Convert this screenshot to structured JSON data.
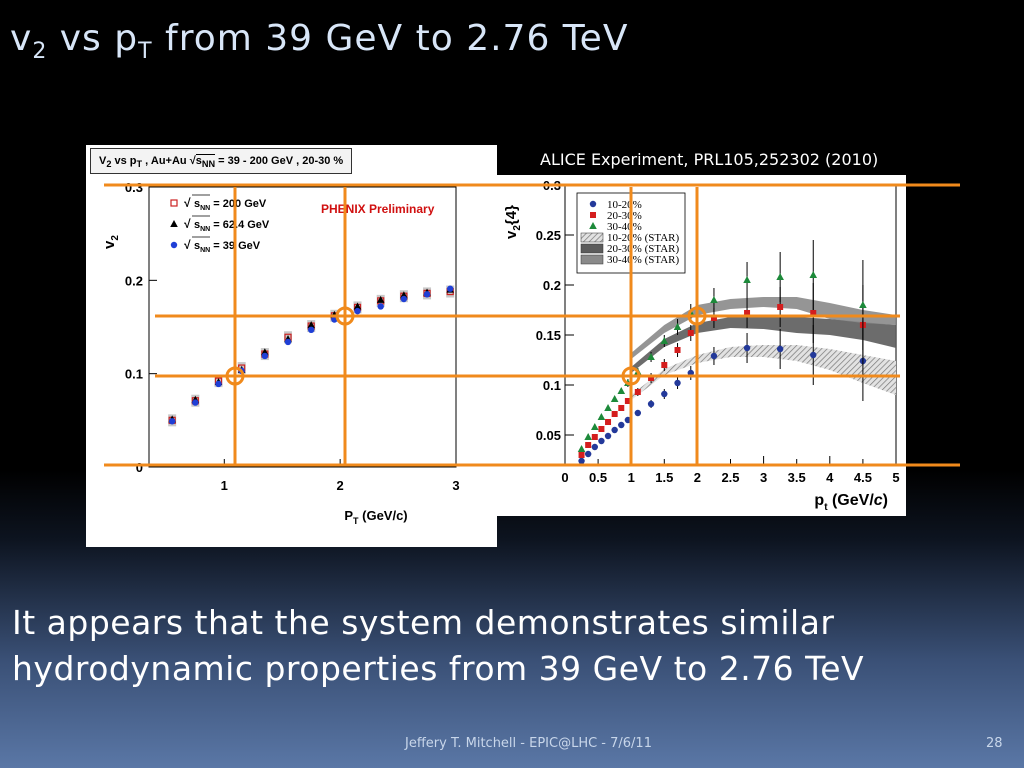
{
  "slide": {
    "title_v": "v",
    "title_v_sub": "2",
    "title_mid": " vs p",
    "title_p_sub": "T",
    "title_rest": " from 39 GeV to 2.76 TeV",
    "citation": "ALICE Experiment, PRL105,252302 (2010)",
    "body": "It appears that the system demonstrates similar hydrodynamic properties from 39 GeV to 2.76 TeV",
    "footer": "Jeffery T. Mitchell - EPIC@LHC  - 7/6/11",
    "page_number": "28"
  },
  "colors": {
    "guide_lines": "#f08a1c",
    "phenix_200": "#cc2222",
    "phenix_62": "#000000",
    "phenix_39": "#1f3fd6",
    "alice_10_20": "#23399a",
    "alice_20_30": "#d41e1e",
    "alice_30_40": "#1d8a3a",
    "phenix_label": "#d01010"
  },
  "chart_data": [
    {
      "type": "scatter",
      "title": "V2 vs pT , Au+Au √sNN = 39 - 200 GeV , 20-30 %",
      "title_parts": {
        "a": "V",
        "a_sub": "2",
        "b": " vs p",
        "b_sub": "T",
        "c": " , Au+Au ",
        "sqrt": "s",
        "sqrt_sub": "NN",
        "d": " = 39 - 200 GeV , 20-30 %"
      },
      "annotation": "PHENIX Preliminary",
      "xlabel": "P",
      "xlabel_sub": "T",
      "xlabel_unit": " (GeV/c)",
      "ylabel": "v",
      "ylabel_sub": "2",
      "xlim": [
        0.35,
        3.0
      ],
      "ylim": [
        0,
        0.3
      ],
      "xticks": [
        1,
        2,
        3
      ],
      "yticks": [
        0,
        0.1,
        0.2,
        0.3
      ],
      "ytick_labels": [
        "0",
        "0.1",
        "0.2",
        "0.3"
      ],
      "legend_position": "top-left",
      "series": [
        {
          "name": "√sNN = 200 GeV",
          "legend_prefix": "s",
          "legend_sub": "NN",
          "legend_suffix": " = 200 GeV",
          "marker": "open-square",
          "x": [
            0.55,
            0.75,
            0.95,
            1.15,
            1.35,
            1.55,
            1.75,
            1.95,
            2.15,
            2.35,
            2.55,
            2.75,
            2.95
          ],
          "y": [
            0.05,
            0.071,
            0.092,
            0.106,
            0.121,
            0.139,
            0.151,
            0.162,
            0.171,
            0.178,
            0.183,
            0.186,
            0.188
          ]
        },
        {
          "name": "√sNN = 62.4 GeV",
          "legend_prefix": "s",
          "legend_sub": "NN",
          "legend_suffix": " = 62.4  GeV",
          "marker": "triangle",
          "x": [
            0.55,
            0.75,
            0.95,
            1.15,
            1.35,
            1.55,
            1.75,
            1.95,
            2.15,
            2.35,
            2.55,
            2.75,
            2.95
          ],
          "y": [
            0.051,
            0.072,
            0.091,
            0.104,
            0.123,
            0.137,
            0.152,
            0.163,
            0.172,
            0.179,
            0.184,
            0.187,
            0.19
          ]
        },
        {
          "name": "√sNN = 39 GeV",
          "legend_prefix": "s",
          "legend_sub": "NN",
          "legend_suffix": " = 39  GeV",
          "marker": "circle",
          "x": [
            0.55,
            0.75,
            0.95,
            1.15,
            1.35,
            1.55,
            1.75,
            1.95,
            2.15,
            2.35,
            2.55,
            2.75,
            2.95
          ],
          "y": [
            0.049,
            0.069,
            0.089,
            0.103,
            0.119,
            0.134,
            0.147,
            0.158,
            0.167,
            0.172,
            0.18,
            0.185,
            0.191
          ]
        }
      ]
    },
    {
      "type": "scatter",
      "xlabel": "p",
      "xlabel_sub": "t",
      "xlabel_unit": " (GeV/",
      "xlabel_italic": "c",
      "xlabel_close": ")",
      "ylabel": "v",
      "ylabel_sub": "2",
      "ylabel_suffix": "{4}",
      "xlim": [
        0,
        5
      ],
      "ylim": [
        0.02,
        0.3
      ],
      "xticks": [
        0,
        0.5,
        1,
        1.5,
        2,
        2.5,
        3,
        3.5,
        4,
        4.5,
        5
      ],
      "xtick_labels": [
        "0",
        "0.5",
        "1",
        "1.5",
        "2",
        "2.5",
        "3",
        "3.5",
        "4",
        "4.5",
        "5"
      ],
      "yticks": [
        0.05,
        0.1,
        0.15,
        0.2,
        0.25,
        0.3
      ],
      "ytick_labels": [
        "0.05",
        "0.1",
        "0.15",
        "0.2",
        "0.25",
        "0.3"
      ],
      "legend_position": "top-left",
      "series": [
        {
          "name": "10-20%",
          "marker": "circle",
          "x": [
            0.25,
            0.35,
            0.45,
            0.55,
            0.65,
            0.75,
            0.85,
            0.95,
            1.1,
            1.3,
            1.5,
            1.7,
            1.9,
            2.25,
            2.75,
            3.25,
            3.75,
            4.5
          ],
          "y": [
            0.024,
            0.031,
            0.038,
            0.044,
            0.049,
            0.055,
            0.06,
            0.065,
            0.072,
            0.081,
            0.091,
            0.102,
            0.112,
            0.129,
            0.137,
            0.136,
            0.13,
            0.124
          ],
          "err": [
            0.003,
            0.003,
            0.003,
            0.003,
            0.003,
            0.003,
            0.003,
            0.003,
            0.003,
            0.004,
            0.005,
            0.006,
            0.007,
            0.009,
            0.015,
            0.02,
            0.03,
            0.04
          ]
        },
        {
          "name": "20-30%",
          "marker": "square",
          "x": [
            0.25,
            0.35,
            0.45,
            0.55,
            0.65,
            0.75,
            0.85,
            0.95,
            1.1,
            1.3,
            1.5,
            1.7,
            1.9,
            2.25,
            2.75,
            3.25,
            3.75,
            4.5
          ],
          "y": [
            0.03,
            0.04,
            0.048,
            0.056,
            0.063,
            0.071,
            0.077,
            0.084,
            0.093,
            0.107,
            0.12,
            0.135,
            0.152,
            0.167,
            0.172,
            0.178,
            0.172,
            0.16
          ],
          "err": [
            0.003,
            0.003,
            0.003,
            0.003,
            0.003,
            0.003,
            0.003,
            0.003,
            0.004,
            0.005,
            0.006,
            0.007,
            0.008,
            0.01,
            0.015,
            0.02,
            0.03,
            0.04
          ]
        },
        {
          "name": "30-40%",
          "marker": "triangle",
          "x": [
            0.25,
            0.35,
            0.45,
            0.55,
            0.65,
            0.75,
            0.85,
            0.95,
            1.1,
            1.3,
            1.5,
            1.7,
            1.9,
            2.25,
            2.75,
            3.25,
            3.75,
            4.5
          ],
          "y": [
            0.036,
            0.048,
            0.058,
            0.068,
            0.077,
            0.086,
            0.094,
            0.102,
            0.113,
            0.128,
            0.144,
            0.158,
            0.172,
            0.185,
            0.205,
            0.208,
            0.21,
            0.18
          ],
          "err": [
            0.003,
            0.003,
            0.003,
            0.003,
            0.003,
            0.003,
            0.003,
            0.004,
            0.004,
            0.005,
            0.006,
            0.008,
            0.009,
            0.012,
            0.018,
            0.025,
            0.035,
            0.045
          ]
        }
      ],
      "bands": [
        {
          "name": "10-20% (STAR)",
          "x": [
            1.0,
            1.5,
            2.0,
            2.5,
            3.0,
            3.5,
            4.0,
            4.5,
            5.0
          ],
          "lo": [
            0.085,
            0.11,
            0.122,
            0.128,
            0.128,
            0.124,
            0.115,
            0.102,
            0.09
          ],
          "hi": [
            0.09,
            0.116,
            0.13,
            0.138,
            0.14,
            0.14,
            0.136,
            0.13,
            0.124
          ]
        },
        {
          "name": "20-30% (STAR)",
          "x": [
            1.0,
            1.5,
            2.0,
            2.5,
            3.0,
            3.5,
            4.0,
            4.5,
            5.0
          ],
          "lo": [
            0.112,
            0.138,
            0.152,
            0.157,
            0.156,
            0.152,
            0.15,
            0.145,
            0.137
          ],
          "hi": [
            0.118,
            0.146,
            0.162,
            0.168,
            0.17,
            0.168,
            0.166,
            0.163,
            0.16
          ]
        },
        {
          "name": "30-40% (STAR)",
          "x": [
            1.0,
            1.5,
            2.0,
            2.5,
            3.0,
            3.5,
            4.0,
            4.5,
            5.0
          ],
          "lo": [
            0.126,
            0.152,
            0.17,
            0.176,
            0.178,
            0.176,
            0.166,
            0.162,
            0.16
          ],
          "hi": [
            0.132,
            0.16,
            0.18,
            0.186,
            0.188,
            0.188,
            0.182,
            0.175,
            0.17
          ]
        }
      ]
    }
  ]
}
